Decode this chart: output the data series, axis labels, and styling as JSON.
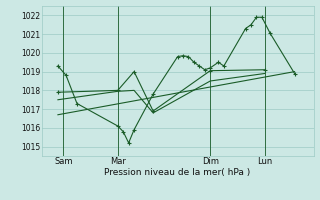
{
  "background_color": "#cce8e4",
  "grid_color": "#9dcbc5",
  "line_color": "#1a5c28",
  "xlabel": "Pression niveau de la mer( hPa )",
  "ylim": [
    1014.5,
    1022.5
  ],
  "yticks": [
    1015,
    1016,
    1017,
    1018,
    1019,
    1020,
    1021,
    1022
  ],
  "xtick_labels": [
    "Sam",
    "Mar",
    "Dim",
    "Lun"
  ],
  "xtick_positions": [
    0.08,
    0.28,
    0.62,
    0.82
  ],
  "vline_x": [
    0.08,
    0.28,
    0.62,
    0.82
  ],
  "main_x": [
    0.06,
    0.09,
    0.13,
    0.28,
    0.3,
    0.32,
    0.34,
    0.41,
    0.5,
    0.52,
    0.54,
    0.56,
    0.58,
    0.6,
    0.62,
    0.65,
    0.67,
    0.75,
    0.77,
    0.79,
    0.81,
    0.84,
    0.93
  ],
  "main_y": [
    1019.3,
    1018.8,
    1017.3,
    1016.1,
    1015.8,
    1015.2,
    1015.9,
    1017.8,
    1019.8,
    1019.85,
    1019.8,
    1019.5,
    1019.3,
    1019.1,
    1019.2,
    1019.5,
    1019.3,
    1021.3,
    1021.5,
    1021.9,
    1021.9,
    1021.05,
    1018.9
  ],
  "curve2_x": [
    0.06,
    0.28,
    0.34,
    0.41,
    0.62,
    0.82
  ],
  "curve2_y": [
    1017.9,
    1018.0,
    1019.0,
    1016.9,
    1019.05,
    1019.1
  ],
  "curve3_x": [
    0.06,
    0.28,
    0.34,
    0.41,
    0.62,
    0.82
  ],
  "curve3_y": [
    1017.5,
    1017.95,
    1018.0,
    1016.8,
    1018.5,
    1018.9
  ],
  "trend_x": [
    0.06,
    0.93
  ],
  "trend_y": [
    1016.7,
    1019.0
  ],
  "xlim": [
    0.0,
    1.0
  ]
}
